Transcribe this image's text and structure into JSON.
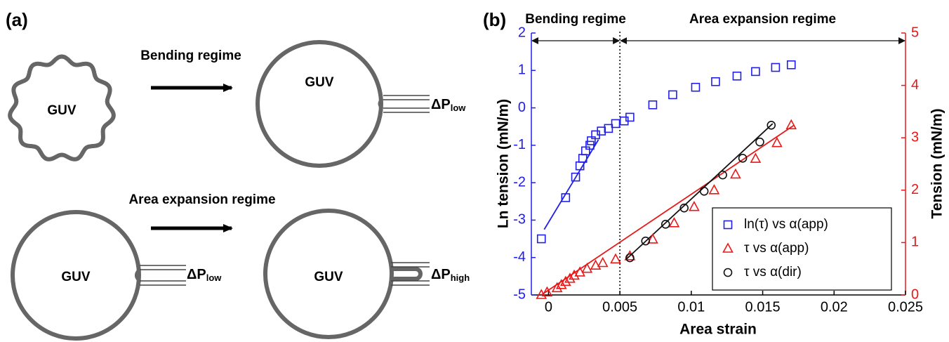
{
  "panel_a": {
    "label": "(a)",
    "bending_title": "Bending regime",
    "expansion_title": "Area expansion regime",
    "cells": [
      "GUV",
      "GUV",
      "GUV",
      "GUV"
    ],
    "pressures": [
      {
        "main": "ΔP",
        "sub": "low"
      },
      {
        "main": "ΔP",
        "sub": "low"
      },
      {
        "main": "ΔP",
        "sub": "high"
      }
    ]
  },
  "chart_data": {
    "type": "scatter",
    "panel_label": "(b)",
    "xlabel": "Area strain",
    "ylabel": "Ln tension (mN/m)",
    "y2label": "Tension (mN/m)",
    "xlim": [
      -0.0012,
      0.025
    ],
    "xticks": [
      0,
      0.005,
      0.01,
      0.015,
      0.02,
      0.025
    ],
    "ylim": [
      -5,
      2
    ],
    "yticks": [
      -5,
      -4,
      -3,
      -2,
      -1,
      0,
      1,
      2
    ],
    "y2lim": [
      0,
      5
    ],
    "y2ticks": [
      0,
      1,
      2,
      3,
      4,
      5
    ],
    "ycolor": "#2020e8",
    "y2color": "#e81818",
    "regimes": [
      {
        "label": "Bending regime",
        "range": [
          -0.0012,
          0.005
        ]
      },
      {
        "label": "Area expansion regime",
        "range": [
          0.005,
          0.025
        ]
      }
    ],
    "divider": 0.005,
    "legend": "lower right",
    "series": [
      {
        "name": "ln(τ) vs α(app)",
        "color": "#2020e8",
        "marker": "square",
        "axis": "y",
        "x": [
          -0.0005,
          0.0012,
          0.0019,
          0.0022,
          0.0024,
          0.0026,
          0.0029,
          0.003,
          0.0033,
          0.0037,
          0.0042,
          0.0047,
          0.0053,
          0.0057,
          0.0073,
          0.0087,
          0.0103,
          0.0117,
          0.0132,
          0.0145,
          0.0159,
          0.017
        ],
        "values": [
          -3.5,
          -2.4,
          -1.85,
          -1.55,
          -1.35,
          -1.15,
          -1.0,
          -0.88,
          -0.72,
          -0.62,
          -0.55,
          -0.42,
          -0.35,
          -0.25,
          0.08,
          0.35,
          0.55,
          0.7,
          0.85,
          0.97,
          1.08,
          1.15
        ]
      },
      {
        "name": "τ vs α(app)",
        "color": "#e81818",
        "marker": "triangle",
        "axis": "y2",
        "x": [
          -0.0005,
          -0.0001,
          0.0006,
          0.0009,
          0.0012,
          0.0015,
          0.0018,
          0.0022,
          0.0027,
          0.0033,
          0.0038,
          0.0047,
          0.0057,
          0.0073,
          0.0088,
          0.0102,
          0.0116,
          0.0131,
          0.0145,
          0.016,
          0.017
        ],
        "values": [
          0,
          0.05,
          0.13,
          0.19,
          0.25,
          0.31,
          0.37,
          0.43,
          0.5,
          0.56,
          0.61,
          0.68,
          0.74,
          1.06,
          1.37,
          1.68,
          2.0,
          2.3,
          2.6,
          2.9,
          3.24
        ]
      },
      {
        "name": "τ vs α(dir)",
        "color": "#111111",
        "marker": "circle",
        "axis": "y2",
        "x": [
          0.0057,
          0.0068,
          0.0082,
          0.0095,
          0.0109,
          0.0122,
          0.0136,
          0.0148,
          0.0156
        ],
        "values": [
          0.71,
          1.03,
          1.35,
          1.66,
          1.98,
          2.29,
          2.61,
          2.92,
          3.24
        ]
      }
    ],
    "fit_lines": [
      {
        "color": "#2020e8",
        "axis": "y",
        "x": [
          -0.0003,
          0.0035
        ],
        "values": [
          -3.25,
          -0.85
        ]
      },
      {
        "color": "#e81818",
        "axis": "y2",
        "x": [
          -0.0005,
          0.0172
        ],
        "values": [
          0,
          3.24
        ]
      },
      {
        "color": "#111111",
        "axis": "y2",
        "x": [
          0.0054,
          0.0157
        ],
        "values": [
          0.67,
          3.27
        ]
      }
    ]
  }
}
